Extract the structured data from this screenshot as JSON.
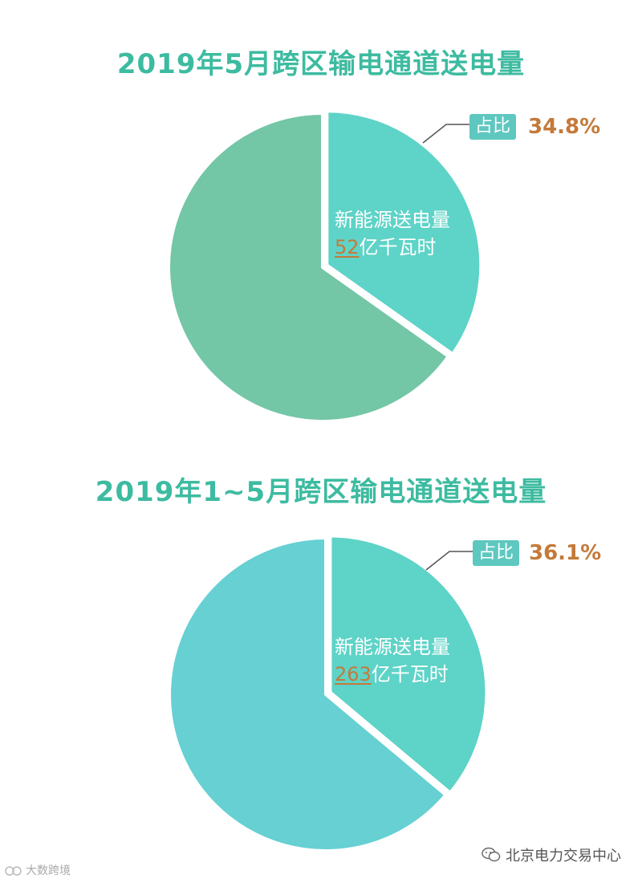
{
  "chart_data": [
    {
      "type": "pie",
      "title": "2019年5月跨区输电通道送电量",
      "slices": [
        {
          "label": "新能源送电量",
          "value": 52,
          "unit": "亿千瓦时",
          "share": 34.8,
          "share_text": "34.8%",
          "color": "#5ed3c7",
          "exploded": true
        },
        {
          "label": "",
          "share": 65.2,
          "color": "#73c6a6"
        }
      ],
      "badge_label": "占比"
    },
    {
      "type": "pie",
      "title": "2019年1~5月跨区输电通道送电量",
      "slices": [
        {
          "label": "新能源送电量",
          "value": 263,
          "unit": "亿千瓦时",
          "share": 36.1,
          "share_text": "36.1%",
          "color": "#5ed3c7",
          "exploded": true
        },
        {
          "label": "",
          "share": 63.9,
          "color": "#66d0d3"
        }
      ],
      "badge_label": "占比"
    }
  ],
  "watermark": {
    "left_text": "大数跨境",
    "right_text": "北京电力交易中心"
  }
}
